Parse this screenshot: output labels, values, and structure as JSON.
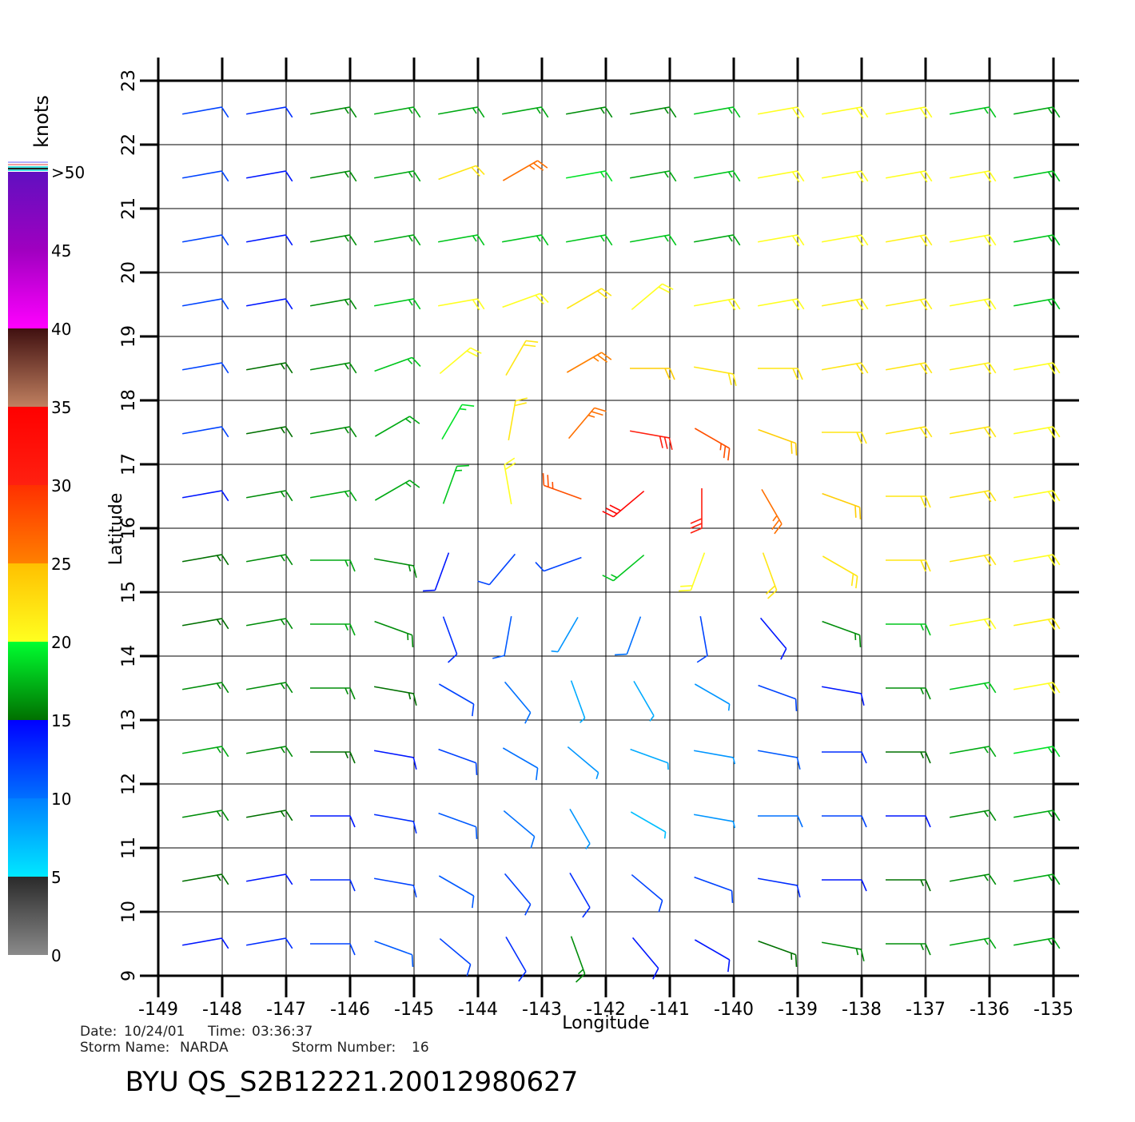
{
  "title": "BYU  QS_S2B12221.20012980627",
  "info": {
    "date_label": "Date:",
    "date": "10/24/01",
    "time_label": "Time:",
    "time": "03:36:37",
    "storm_name_label": "Storm Name:",
    "storm_name": "NARDA",
    "storm_number_label": "Storm Number:",
    "storm_number": "16"
  },
  "x_axis": {
    "label": "Longitude",
    "lim": [
      -149,
      -135
    ],
    "ticks": [
      -149,
      -148,
      -147,
      -146,
      -145,
      -144,
      -143,
      -142,
      -141,
      -140,
      -139,
      -138,
      -137,
      -136,
      -135
    ]
  },
  "y_axis": {
    "label": "Latitude",
    "lim": [
      9,
      23
    ],
    "ticks": [
      9,
      10,
      11,
      12,
      13,
      14,
      15,
      16,
      17,
      18,
      19,
      20,
      21,
      22,
      23
    ]
  },
  "colorbar": {
    "title": "knots",
    "lim": [
      0,
      50
    ],
    "ticks": [
      0,
      5,
      10,
      15,
      20,
      25,
      30,
      35,
      40,
      45,
      {
        "value": 50,
        "label": ">50"
      }
    ],
    "segments": [
      [
        "#8a8a8a",
        "#2a2a2a"
      ],
      [
        "#00e8ff",
        "#0080ff"
      ],
      [
        "#0070ff",
        "#0000ff"
      ],
      [
        "#007000",
        "#00ff30"
      ],
      [
        "#ffff20",
        "#ffc000"
      ],
      [
        "#ff8000",
        "#ff3000"
      ],
      [
        "#ff2010",
        "#ff0000"
      ],
      [
        "#c08060",
        "#401010"
      ],
      [
        "#ff00ff",
        "#a000c0"
      ],
      [
        "#a000c0",
        "#6010c0"
      ]
    ]
  },
  "wind": {
    "lon": [
      -148.5,
      -147.5,
      -146.5,
      -145.5,
      -144.5,
      -143.5,
      -142.5,
      -141.5,
      -140.5,
      -139.5,
      -138.5,
      -137.5,
      -136.5,
      -135.5
    ],
    "lat": [
      22.5,
      21.5,
      20.5,
      19.5,
      18.5,
      17.5,
      16.5,
      15.5,
      14.5,
      13.5,
      12.5,
      11.5,
      10.5,
      9.5
    ],
    "speed": [
      [
        12,
        13,
        16,
        17,
        17,
        17,
        16,
        16,
        18,
        20,
        20,
        20,
        18,
        17
      ],
      [
        12,
        14,
        16,
        17,
        22,
        26,
        19,
        17,
        18,
        20,
        20,
        20,
        20,
        18
      ],
      [
        12,
        14,
        16,
        17,
        18,
        18,
        18,
        18,
        17,
        20,
        20,
        21,
        20,
        18
      ],
      [
        12,
        14,
        16,
        18,
        20,
        20,
        22,
        20,
        20,
        20,
        21,
        21,
        20,
        18
      ],
      [
        12,
        15,
        16,
        18,
        20,
        22,
        25,
        24,
        22,
        22,
        22,
        22,
        21,
        20
      ],
      [
        12,
        15,
        16,
        17,
        19,
        22,
        26,
        30,
        28,
        24,
        22,
        22,
        22,
        20
      ],
      [
        14,
        16,
        17,
        17,
        18,
        20,
        28,
        34,
        30,
        26,
        24,
        22,
        22,
        20
      ],
      [
        15,
        16,
        17,
        16,
        14,
        12,
        12,
        18,
        20,
        22,
        22,
        22,
        22,
        20
      ],
      [
        15,
        16,
        17,
        16,
        13,
        11,
        9,
        10,
        12,
        14,
        16,
        18,
        20,
        21
      ],
      [
        16,
        16,
        16,
        15,
        12,
        10,
        8,
        8,
        9,
        12,
        14,
        16,
        18,
        20
      ],
      [
        17,
        16,
        15,
        14,
        12,
        10,
        9,
        8,
        9,
        11,
        13,
        15,
        17,
        19
      ],
      [
        16,
        15,
        14,
        13,
        11,
        10,
        9,
        7,
        9,
        10,
        12,
        14,
        16,
        17
      ],
      [
        15,
        14,
        13,
        12,
        11,
        12,
        13,
        12,
        12,
        13,
        14,
        15,
        16,
        17
      ],
      [
        14,
        13,
        12,
        11,
        12,
        13,
        16,
        14,
        14,
        15,
        16,
        16,
        17,
        17
      ]
    ],
    "dir": [
      [
        80,
        80,
        80,
        80,
        80,
        80,
        80,
        80,
        80,
        80,
        80,
        80,
        80,
        80
      ],
      [
        80,
        80,
        80,
        80,
        70,
        60,
        80,
        80,
        80,
        80,
        80,
        80,
        80,
        80
      ],
      [
        80,
        80,
        80,
        80,
        80,
        80,
        80,
        80,
        80,
        80,
        80,
        80,
        80,
        80
      ],
      [
        80,
        80,
        80,
        80,
        80,
        70,
        60,
        50,
        80,
        80,
        80,
        80,
        80,
        80
      ],
      [
        80,
        80,
        80,
        70,
        50,
        30,
        60,
        90,
        100,
        90,
        80,
        80,
        80,
        80
      ],
      [
        80,
        80,
        80,
        60,
        30,
        10,
        40,
        100,
        120,
        110,
        90,
        80,
        80,
        80
      ],
      [
        80,
        80,
        80,
        60,
        20,
        350,
        290,
        230,
        180,
        150,
        110,
        90,
        80,
        80
      ],
      [
        80,
        80,
        90,
        100,
        200,
        220,
        250,
        230,
        200,
        160,
        120,
        90,
        80,
        80
      ],
      [
        80,
        80,
        90,
        110,
        160,
        190,
        210,
        200,
        170,
        140,
        110,
        90,
        80,
        80
      ],
      [
        80,
        80,
        90,
        100,
        120,
        140,
        160,
        150,
        120,
        110,
        100,
        90,
        80,
        80
      ],
      [
        80,
        80,
        90,
        100,
        110,
        120,
        130,
        110,
        100,
        100,
        90,
        90,
        80,
        80
      ],
      [
        80,
        80,
        90,
        100,
        110,
        130,
        150,
        120,
        100,
        90,
        90,
        90,
        80,
        80
      ],
      [
        80,
        80,
        90,
        100,
        120,
        140,
        150,
        130,
        110,
        100,
        90,
        90,
        80,
        80
      ],
      [
        80,
        80,
        90,
        110,
        130,
        150,
        160,
        140,
        120,
        110,
        100,
        90,
        80,
        80
      ]
    ]
  }
}
